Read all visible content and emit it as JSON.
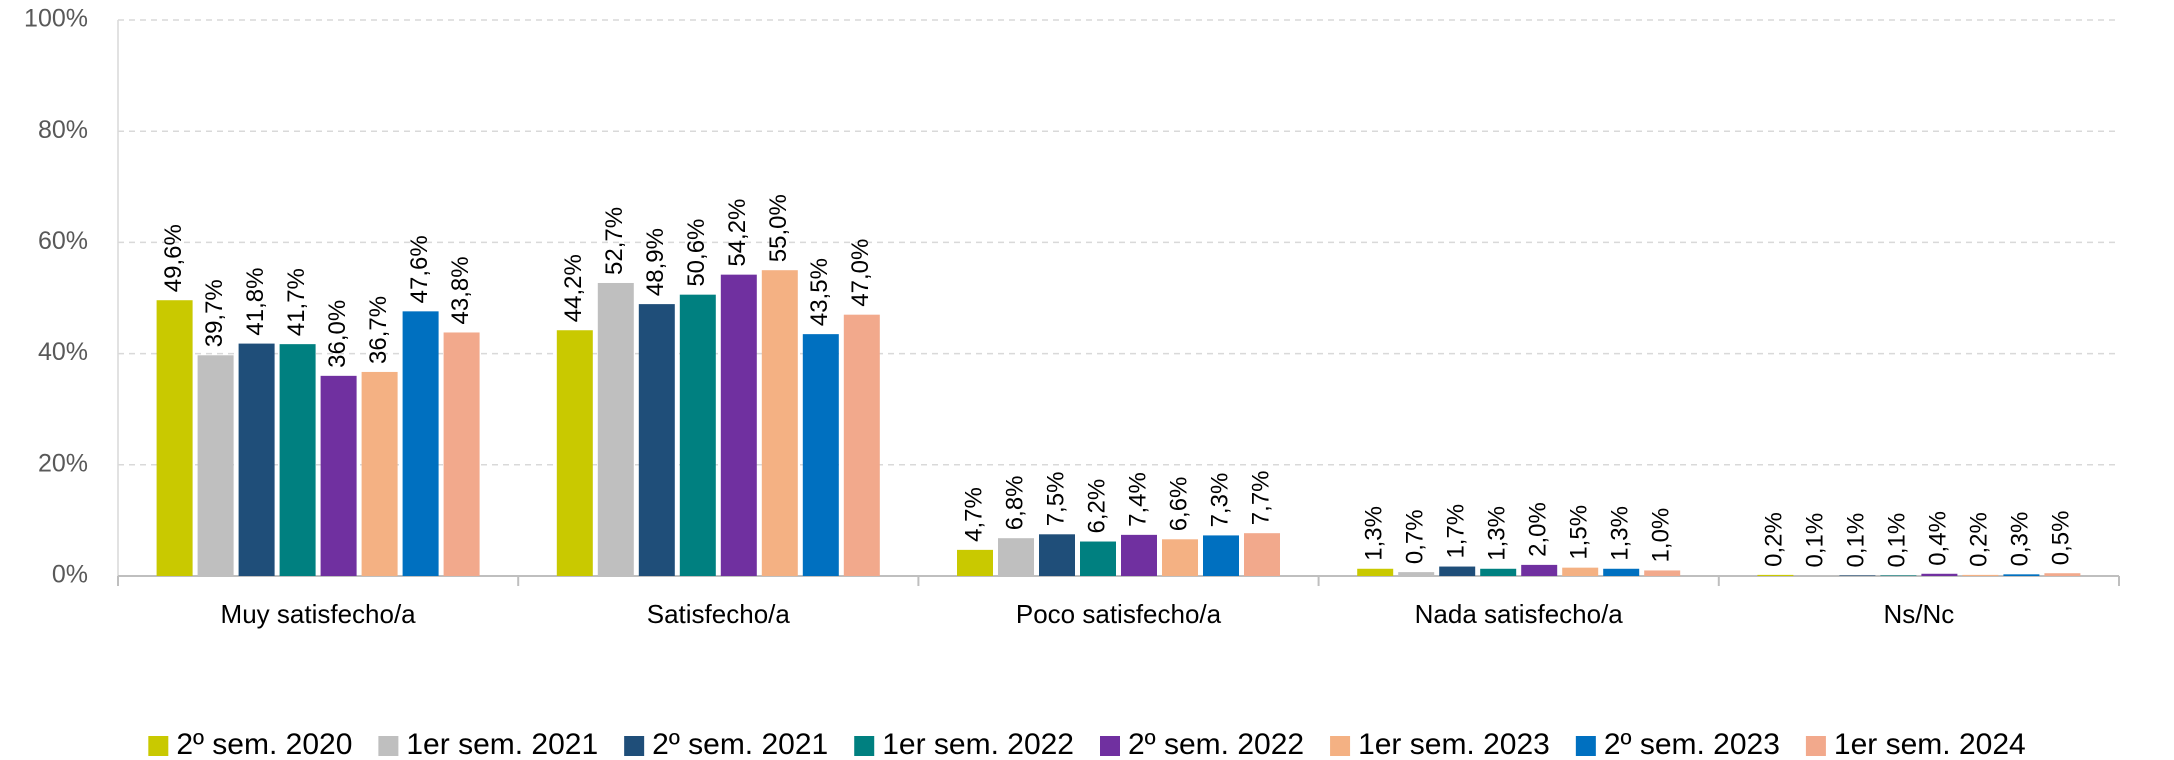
{
  "chart_data": {
    "type": "bar",
    "categories": [
      "Muy satisfecho/a",
      "Satisfecho/a",
      "Poco satisfecho/a",
      "Nada satisfecho/a",
      "Ns/Nc"
    ],
    "ylim": [
      0,
      100
    ],
    "yticks": [
      {
        "value": 0,
        "label": "0%"
      },
      {
        "value": 20,
        "label": "20%"
      },
      {
        "value": 40,
        "label": "40%"
      },
      {
        "value": 60,
        "label": "60%"
      },
      {
        "value": 80,
        "label": "80%"
      },
      {
        "value": 100,
        "label": "100%"
      }
    ],
    "grid": true,
    "legend": "bottom",
    "series": [
      {
        "name": "2º sem. 2020",
        "color": "#c9c900",
        "values": [
          49.6,
          44.2,
          4.7,
          1.3,
          0.2
        ],
        "value_labels": [
          "49,6%",
          "44,2%",
          "4,7%",
          "1,3%",
          "0,2%"
        ]
      },
      {
        "name": "1er sem. 2021",
        "color": "#bfbfbf",
        "values": [
          39.7,
          52.7,
          6.8,
          0.7,
          0.1
        ],
        "value_labels": [
          "39,7%",
          "52,7%",
          "6,8%",
          "0,7%",
          "0,1%"
        ]
      },
      {
        "name": "2º sem. 2021",
        "color": "#1f4e79",
        "values": [
          41.8,
          48.9,
          7.5,
          1.7,
          0.1
        ],
        "value_labels": [
          "41,8%",
          "48,9%",
          "7,5%",
          "1,7%",
          "0,1%"
        ]
      },
      {
        "name": "1er sem. 2022",
        "color": "#008080",
        "values": [
          41.7,
          50.6,
          6.2,
          1.3,
          0.1
        ],
        "value_labels": [
          "41,7%",
          "50,6%",
          "6,2%",
          "1,3%",
          "0,1%"
        ]
      },
      {
        "name": "2º sem. 2022",
        "color": "#7030a0",
        "values": [
          36.0,
          54.2,
          7.4,
          2.0,
          0.4
        ],
        "value_labels": [
          "36,0%",
          "54,2%",
          "7,4%",
          "2,0%",
          "0,4%"
        ]
      },
      {
        "name": "1er sem. 2023",
        "color": "#f4b183",
        "values": [
          36.7,
          55.0,
          6.6,
          1.5,
          0.2
        ],
        "value_labels": [
          "36,7%",
          "55,0%",
          "6,6%",
          "1,5%",
          "0,2%"
        ]
      },
      {
        "name": "2º sem. 2023",
        "color": "#0070c0",
        "values": [
          47.6,
          43.5,
          7.3,
          1.3,
          0.3
        ],
        "value_labels": [
          "47,6%",
          "43,5%",
          "7,3%",
          "1,3%",
          "0,3%"
        ]
      },
      {
        "name": "1er sem. 2024",
        "color": "#f2a98c",
        "values": [
          43.8,
          47.0,
          7.7,
          1.0,
          0.5
        ],
        "value_labels": [
          "43,8%",
          "47,0%",
          "7,7%",
          "1,0%",
          "0,5%"
        ]
      }
    ]
  }
}
